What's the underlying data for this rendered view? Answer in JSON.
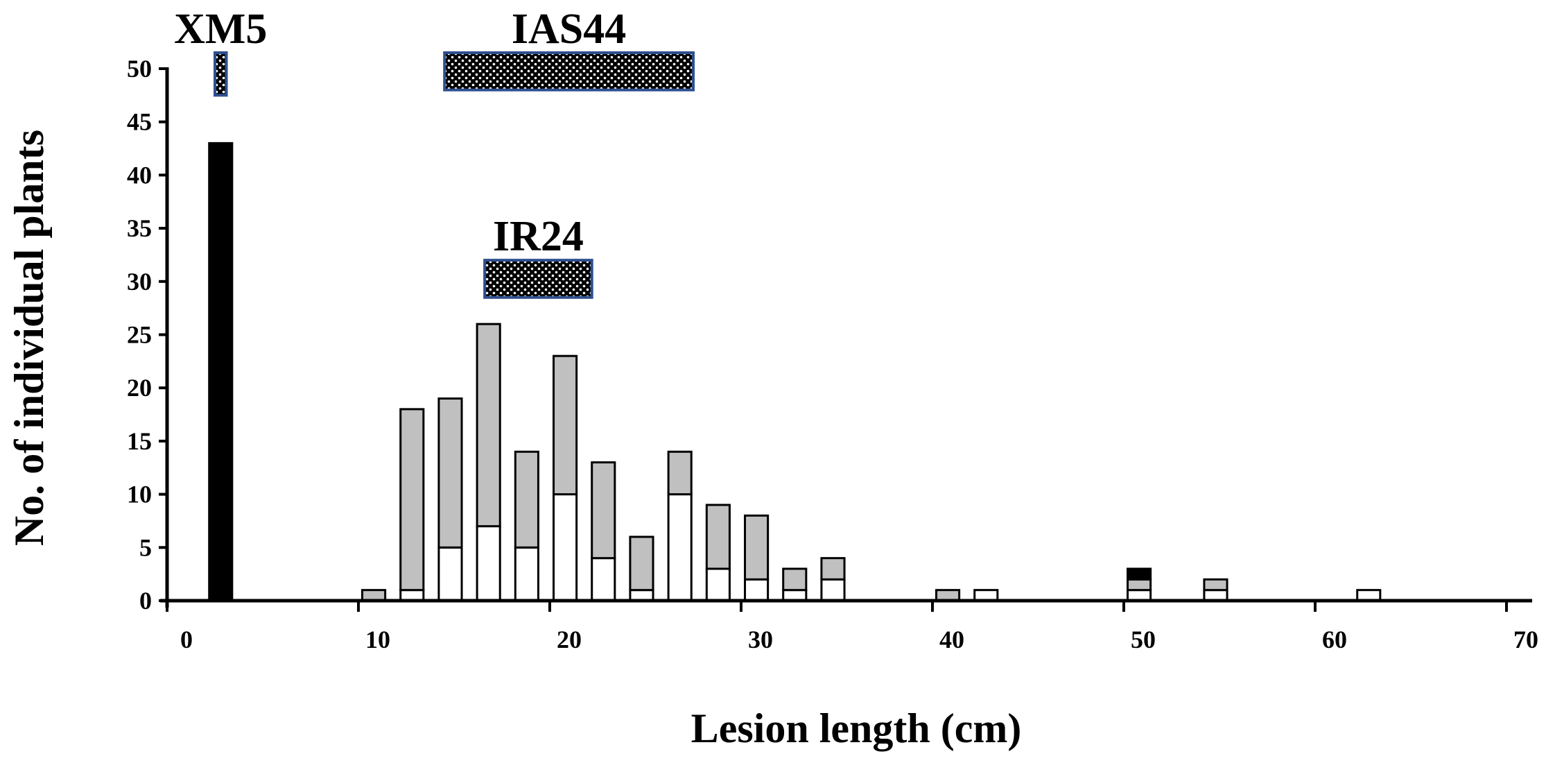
{
  "chart_data": {
    "type": "bar",
    "stacked": true,
    "xlabel": "Lesion length (cm)",
    "ylabel": "No. of individual plants",
    "xlim": [
      0,
      70
    ],
    "ylim": [
      0,
      50
    ],
    "x_ticks": [
      0,
      10,
      20,
      30,
      40,
      50,
      60,
      70
    ],
    "y_ticks": [
      0,
      5,
      10,
      15,
      20,
      25,
      30,
      35,
      40,
      45,
      50
    ],
    "grid": false,
    "legend": "none",
    "bin_width": 1.2,
    "series": [
      {
        "color": "#ffffff",
        "points": [
          {
            "x": 10.8,
            "y": 0
          },
          {
            "x": 12.8,
            "y": 1
          },
          {
            "x": 14.8,
            "y": 5
          },
          {
            "x": 16.8,
            "y": 7
          },
          {
            "x": 18.8,
            "y": 5
          },
          {
            "x": 20.8,
            "y": 10
          },
          {
            "x": 22.8,
            "y": 4
          },
          {
            "x": 24.8,
            "y": 1
          },
          {
            "x": 26.8,
            "y": 10
          },
          {
            "x": 28.8,
            "y": 3
          },
          {
            "x": 30.8,
            "y": 2
          },
          {
            "x": 32.8,
            "y": 1
          },
          {
            "x": 34.8,
            "y": 2
          },
          {
            "x": 40.8,
            "y": 0
          },
          {
            "x": 42.8,
            "y": 1
          },
          {
            "x": 50.8,
            "y": 1
          },
          {
            "x": 54.8,
            "y": 1
          },
          {
            "x": 62.8,
            "y": 1
          }
        ]
      },
      {
        "color": "#c0c0c0",
        "points": [
          {
            "x": 10.8,
            "y": 1
          },
          {
            "x": 12.8,
            "y": 17
          },
          {
            "x": 14.8,
            "y": 14
          },
          {
            "x": 16.8,
            "y": 19
          },
          {
            "x": 18.8,
            "y": 9
          },
          {
            "x": 20.8,
            "y": 13
          },
          {
            "x": 22.8,
            "y": 9
          },
          {
            "x": 24.8,
            "y": 5
          },
          {
            "x": 26.8,
            "y": 4
          },
          {
            "x": 28.8,
            "y": 6
          },
          {
            "x": 30.8,
            "y": 6
          },
          {
            "x": 32.8,
            "y": 2
          },
          {
            "x": 34.8,
            "y": 2
          },
          {
            "x": 40.8,
            "y": 1
          },
          {
            "x": 42.8,
            "y": 0
          },
          {
            "x": 50.8,
            "y": 1
          },
          {
            "x": 54.8,
            "y": 1
          },
          {
            "x": 62.8,
            "y": 0
          }
        ]
      },
      {
        "color": "#000000",
        "points": [
          {
            "x": 2.8,
            "y": 43
          },
          {
            "x": 50.8,
            "y": 1
          }
        ]
      }
    ],
    "parent_ranges": [
      {
        "label": "XM5",
        "x_range": [
          2.5,
          3.1
        ],
        "y_range": [
          47.5,
          51.5
        ]
      },
      {
        "label": "IAS44",
        "x_range": [
          14.5,
          27.5
        ],
        "y_range": [
          48,
          51.5
        ]
      },
      {
        "label": "IR24",
        "x_range": [
          16.6,
          22.2
        ],
        "y_range": [
          28.5,
          32
        ]
      }
    ]
  }
}
